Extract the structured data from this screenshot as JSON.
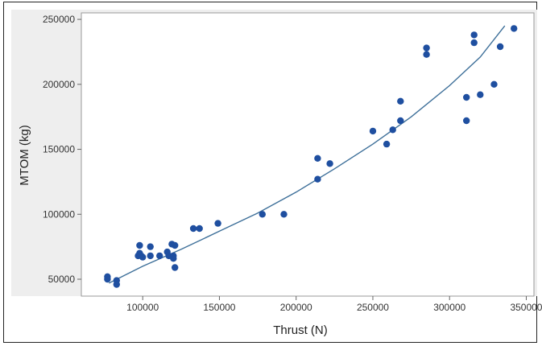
{
  "chart_data": {
    "type": "scatter",
    "title": "",
    "xlabel": "Thrust (N)",
    "ylabel": "MTOM (kg)",
    "xlim": [
      60000,
      355000
    ],
    "ylim": [
      37000,
      255000
    ],
    "xticks": [
      100000,
      150000,
      200000,
      250000,
      300000,
      350000
    ],
    "yticks": [
      50000,
      100000,
      150000,
      200000,
      250000
    ],
    "xtick_labels": [
      "100000",
      "150000",
      "200000",
      "250000",
      "300000",
      "350000"
    ],
    "ytick_labels": [
      "50000",
      "100000",
      "150000",
      "200000",
      "250000"
    ],
    "grid": false,
    "colors": {
      "points": "#1f4fa0",
      "fit": "#3d6f99",
      "plot_bg": "#ffffff",
      "outer_bg": "#eeeeee"
    },
    "points": [
      [
        77000,
        52000
      ],
      [
        77000,
        50000
      ],
      [
        83000,
        49000
      ],
      [
        83000,
        46000
      ],
      [
        97000,
        68000
      ],
      [
        98000,
        76000
      ],
      [
        98000,
        70000
      ],
      [
        99000,
        68000
      ],
      [
        100000,
        67000
      ],
      [
        105000,
        68000
      ],
      [
        105000,
        75000
      ],
      [
        111000,
        68000
      ],
      [
        116000,
        71000
      ],
      [
        117000,
        68000
      ],
      [
        119000,
        77000
      ],
      [
        120000,
        68000
      ],
      [
        120000,
        66000
      ],
      [
        121000,
        59000
      ],
      [
        121000,
        76000
      ],
      [
        133000,
        89000
      ],
      [
        137000,
        89000
      ],
      [
        149000,
        93000
      ],
      [
        178000,
        100000
      ],
      [
        192000,
        100000
      ],
      [
        214000,
        127000
      ],
      [
        214000,
        143000
      ],
      [
        222000,
        139000
      ],
      [
        250000,
        164000
      ],
      [
        259000,
        154000
      ],
      [
        263000,
        165000
      ],
      [
        268000,
        172000
      ],
      [
        268000,
        187000
      ],
      [
        285000,
        228000
      ],
      [
        285000,
        223000
      ],
      [
        311000,
        172000
      ],
      [
        311000,
        190000
      ],
      [
        316000,
        232000
      ],
      [
        316000,
        238000
      ],
      [
        320000,
        192000
      ],
      [
        329000,
        200000
      ],
      [
        333000,
        229000
      ],
      [
        342000,
        243000
      ]
    ],
    "fit": {
      "type": "quadratic",
      "x": [
        78000,
        100000,
        125000,
        150000,
        175000,
        200000,
        225000,
        250000,
        275000,
        300000,
        320000,
        336000
      ],
      "y": [
        47000,
        60000,
        73000,
        87000,
        101000,
        117000,
        135000,
        154000,
        175000,
        199000,
        221000,
        245000
      ]
    }
  }
}
